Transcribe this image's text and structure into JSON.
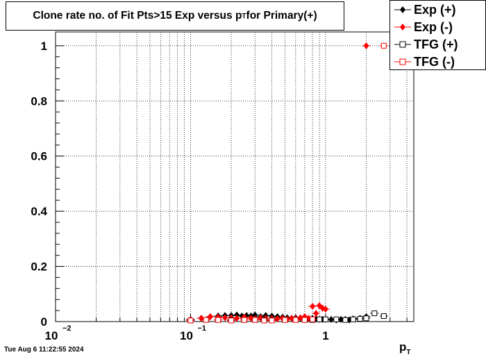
{
  "chart_data": {
    "type": "scatter",
    "title_main": "Clone rate no. of Fit Pts>15 Exp versus p",
    "title_sub": "T",
    "title_tail": " for Primary(+)",
    "xlabel_main": "p",
    "xlabel_sub": "T",
    "xscale": "log",
    "xlim": [
      0.01,
      4.5
    ],
    "ylim": [
      0,
      1.05
    ],
    "grid": true,
    "legend_placement": "top-right",
    "x_tick_labels": [
      {
        "base": "10",
        "exp": "−2",
        "value": 0.01
      },
      {
        "base": "10",
        "exp": "−1",
        "value": 0.1
      },
      {
        "base": "1",
        "exp": "",
        "value": 1
      }
    ],
    "y_ticks": [
      0,
      0.2,
      0.4,
      0.6,
      0.8,
      1
    ],
    "y_tick_labels": [
      "0",
      "0.2",
      "0.4",
      "0.6",
      "0.8",
      "1"
    ],
    "colors": {
      "exp": "#000000",
      "exp_neg": "#ff0000",
      "tfg": "#000000",
      "tfg_neg": "#ff0000"
    },
    "series": [
      {
        "name": "Exp (+)",
        "marker": "diamond-filled",
        "color": "#000000",
        "x": [
          0.1,
          0.12,
          0.14,
          0.16,
          0.18,
          0.2,
          0.22,
          0.24,
          0.26,
          0.28,
          0.3,
          0.33,
          0.36,
          0.4,
          0.44,
          0.48,
          0.52,
          0.56,
          0.6,
          0.65,
          0.7,
          0.75,
          0.8,
          0.85,
          0.9,
          0.95,
          1.0,
          1.1,
          1.2,
          1.3,
          1.4,
          1.5,
          1.6,
          1.8,
          2.0
        ],
        "y": [
          0.008,
          0.012,
          0.018,
          0.02,
          0.022,
          0.022,
          0.024,
          0.02,
          0.022,
          0.02,
          0.024,
          0.018,
          0.022,
          0.02,
          0.018,
          0.016,
          0.014,
          0.012,
          0.014,
          0.012,
          0.014,
          0.01,
          0.012,
          0.01,
          0.008,
          0.008,
          0.008,
          0.008,
          0.006,
          0.008,
          0.008,
          0.006,
          0.01,
          0.012,
          0.018
        ]
      },
      {
        "name": "Exp (-)",
        "marker": "diamond-filled",
        "color": "#ff0000",
        "x": [
          0.1,
          0.12,
          0.14,
          0.16,
          0.18,
          0.2,
          0.22,
          0.25,
          0.28,
          0.3,
          0.33,
          0.36,
          0.4,
          0.44,
          0.48,
          0.52,
          0.56,
          0.6,
          0.65,
          0.7,
          0.75,
          0.8,
          0.85,
          0.9,
          0.95,
          1.0,
          2.0
        ],
        "y": [
          0.006,
          0.012,
          0.018,
          0.016,
          0.014,
          0.014,
          0.012,
          0.016,
          0.012,
          0.01,
          0.014,
          0.012,
          0.012,
          0.01,
          0.012,
          0.008,
          0.012,
          0.01,
          0.014,
          0.018,
          0.012,
          0.055,
          0.03,
          0.058,
          0.048,
          0.045,
          1
        ]
      },
      {
        "name": "TFG (+)",
        "marker": "square-open",
        "color": "#000000",
        "x": [
          0.1,
          0.13,
          0.16,
          0.2,
          0.25,
          0.3,
          0.35,
          0.4,
          0.5,
          0.6,
          0.7,
          0.8,
          0.9,
          1.0,
          1.2,
          1.4,
          1.6,
          1.8,
          2.0,
          2.3,
          2.7
        ],
        "y": [
          0.004,
          0.006,
          0.006,
          0.006,
          0.006,
          0.006,
          0.006,
          0.006,
          0.006,
          0.006,
          0.006,
          0.006,
          0.008,
          0.008,
          0.008,
          0.006,
          0.008,
          0.01,
          0.012,
          0.03,
          0.02
        ]
      },
      {
        "name": "TFG (-)",
        "marker": "square-open",
        "color": "#ff0000",
        "x": [
          0.1,
          0.13,
          0.16,
          0.2,
          0.25,
          0.3,
          0.35,
          0.4,
          0.5,
          0.6,
          0.7,
          0.8,
          2.7
        ],
        "y": [
          0.004,
          0.006,
          0.006,
          0.004,
          0.006,
          0.006,
          0.004,
          0.004,
          0.006,
          0.006,
          0.006,
          0.008,
          1
        ]
      }
    ],
    "datestamp": "Tue Aug  6 11:22:55 2024"
  }
}
